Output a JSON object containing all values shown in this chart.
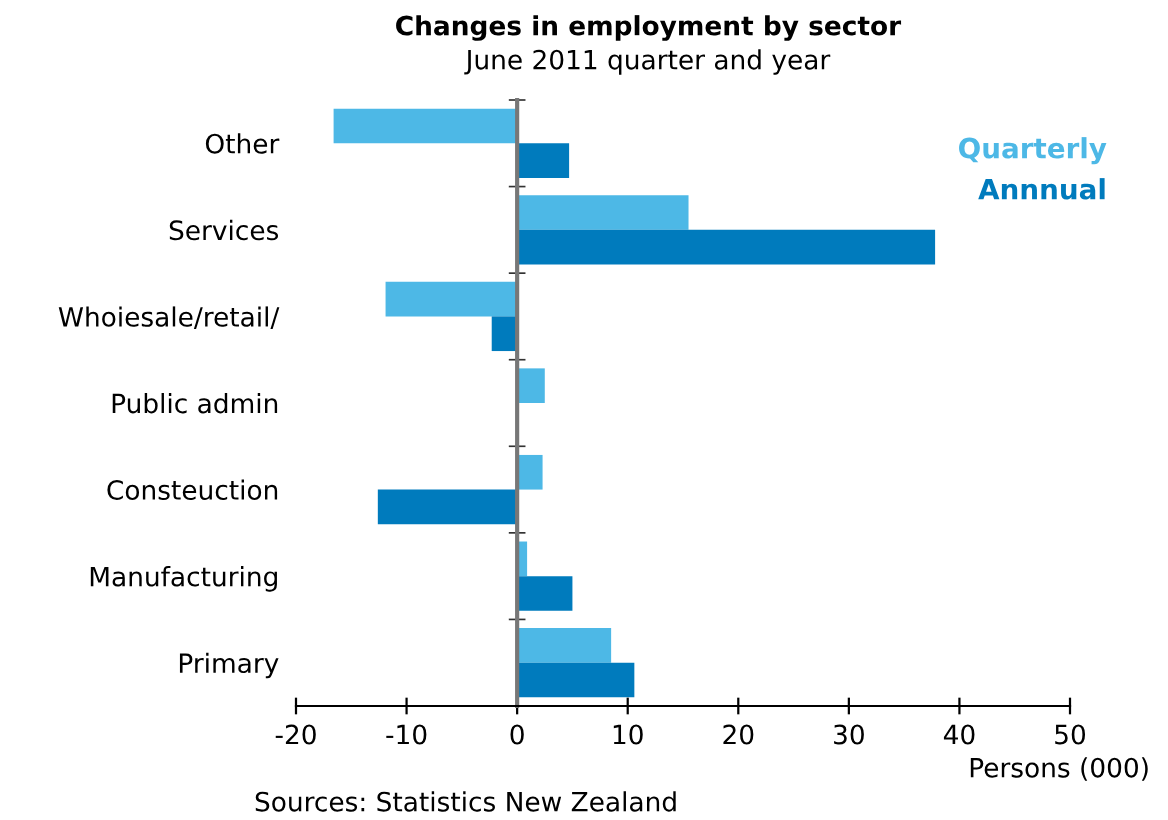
{
  "chart_data": {
    "type": "bar",
    "orientation": "horizontal",
    "title": "Changes in employment by sector",
    "subtitle": "June 2011 quarter and year",
    "categories": [
      "Other",
      "Services",
      "Whoiesale/retail/",
      "Public admin",
      "Consteuction",
      "Manufacturing",
      "Primary"
    ],
    "series": [
      {
        "name": "Quarterly",
        "color": "#4db8e6",
        "values": [
          -16.6,
          15.5,
          -11.9,
          2.5,
          2.3,
          0.9,
          8.5
        ]
      },
      {
        "name": "Annnual",
        "color": "#007bbd",
        "values": [
          4.7,
          37.8,
          -2.3,
          null,
          -12.6,
          5.0,
          10.6
        ]
      }
    ],
    "xlim": [
      -20,
      50
    ],
    "xticks": [
      {
        "value": -20,
        "label": "-20"
      },
      {
        "value": -10,
        "label": "-10"
      },
      0,
      10,
      20,
      30,
      40,
      50
    ],
    "xlabel": "Persons (000)",
    "legend": "top right",
    "annotations": [
      "Sources: Statistics New Zealand"
    ]
  }
}
